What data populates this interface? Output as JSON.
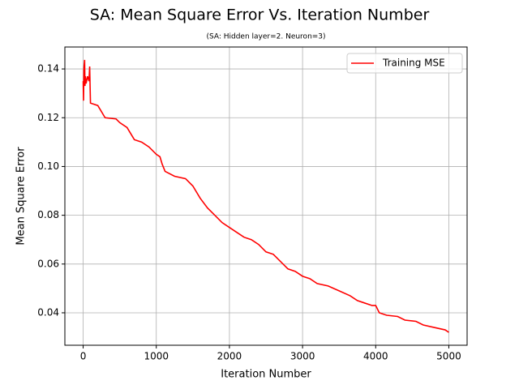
{
  "chart_data": {
    "type": "line",
    "title": "SA: Mean Square Error Vs. Iteration Number",
    "subtitle": "(SA: Hidden layer=2. Neuron=3)",
    "xlabel": "Iteration Number",
    "ylabel": "Mean Square Error",
    "x": [
      0,
      5,
      10,
      20,
      25,
      30,
      40,
      60,
      80,
      89,
      100,
      200,
      280,
      300,
      450,
      500,
      600,
      700,
      800,
      900,
      1000,
      1050,
      1080,
      1120,
      1250,
      1400,
      1500,
      1600,
      1700,
      1800,
      1900,
      2000,
      2100,
      2200,
      2300,
      2400,
      2500,
      2600,
      2700,
      2800,
      2900,
      3000,
      3100,
      3200,
      3350,
      3500,
      3650,
      3750,
      3850,
      3950,
      4000,
      4050,
      4150,
      4300,
      4400,
      4550,
      4650,
      4800,
      4950,
      5000
    ],
    "series": [
      {
        "name": "Training MSE",
        "color": "#ff0000",
        "values": [
          0.135,
          0.127,
          0.14,
          0.1437,
          0.133,
          0.137,
          0.134,
          0.137,
          0.135,
          0.141,
          0.126,
          0.125,
          0.121,
          0.12,
          0.1195,
          0.118,
          0.116,
          0.111,
          0.11,
          0.108,
          0.105,
          0.104,
          0.101,
          0.098,
          0.096,
          0.095,
          0.092,
          0.087,
          0.083,
          0.08,
          0.077,
          0.075,
          0.073,
          0.071,
          0.07,
          0.068,
          0.065,
          0.064,
          0.061,
          0.058,
          0.057,
          0.055,
          0.054,
          0.052,
          0.051,
          0.049,
          0.047,
          0.045,
          0.044,
          0.043,
          0.043,
          0.04,
          0.039,
          0.0385,
          0.037,
          0.0365,
          0.035,
          0.034,
          0.033,
          0.032
        ]
      }
    ],
    "xlim": [
      -250,
      5250
    ],
    "ylim": [
      0.0267,
      0.149
    ],
    "xticks": [
      0,
      1000,
      2000,
      3000,
      4000,
      5000
    ],
    "yticks": [
      0.04,
      0.06,
      0.08,
      {
        "value": 0.1,
        "label": "0.10"
      },
      0.12,
      0.14
    ],
    "grid": true,
    "legend": "upper-right"
  }
}
